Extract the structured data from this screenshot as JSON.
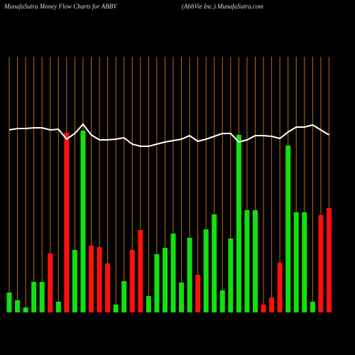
{
  "chart_data": {
    "type": "money-flow",
    "title": "MunafaSutra  Money Flow  Charts for ABBV",
    "subtitle": "(AbbVie   Inc.) MunafaSutra.com",
    "categories": [
      null,
      null,
      null,
      null,
      null,
      null,
      null,
      null,
      null,
      null,
      null,
      null,
      null,
      null,
      null,
      null,
      null,
      null,
      null,
      null,
      null,
      null,
      null,
      null,
      null,
      null,
      null,
      null,
      null,
      null,
      null,
      null,
      null,
      null,
      null,
      null,
      null,
      null,
      null,
      null
    ],
    "bars": {
      "values": [
        28,
        17,
        7,
        43,
        43,
        83,
        15,
        253,
        88,
        256,
        94,
        92,
        69,
        11,
        44,
        88,
        116,
        23,
        82,
        91,
        111,
        42,
        105,
        53,
        117,
        138,
        31,
        104,
        250,
        144,
        144,
        11,
        21,
        70,
        235,
        141,
        141,
        15,
        137,
        147
      ],
      "colors": [
        "#11e011",
        "#11e011",
        "#11e011",
        "#11e011",
        "#11e011",
        "#ff1010",
        "#11e011",
        "#ff1010",
        "#11e011",
        "#11e011",
        "#ff1010",
        "#ff1010",
        "#ff1010",
        "#11e011",
        "#11e011",
        "#ff1010",
        "#ff1010",
        "#11e011",
        "#11e011",
        "#11e011",
        "#11e011",
        "#11e011",
        "#11e011",
        "#ff1010",
        "#11e011",
        "#11e011",
        "#11e011",
        "#11e011",
        "#11e011",
        "#11e011",
        "#11e011",
        "#ff1010",
        "#ff1010",
        "#ff1010",
        "#11e011",
        "#11e011",
        "#11e011",
        "#11e011",
        "#ff1010",
        "#ff1010"
      ]
    },
    "line": {
      "color": "#ffffff",
      "values": [
        257,
        259,
        259,
        260,
        260,
        257,
        258,
        244,
        252,
        265,
        250,
        243,
        243,
        244,
        246,
        237,
        234,
        234,
        237,
        240,
        242,
        244,
        249,
        241,
        244,
        248,
        252,
        252,
        240,
        243,
        249,
        249,
        248,
        245,
        254,
        261,
        261,
        264,
        257,
        250
      ]
    },
    "ylim": [
      0,
      440
    ],
    "gridline_color": "#b8700a"
  }
}
